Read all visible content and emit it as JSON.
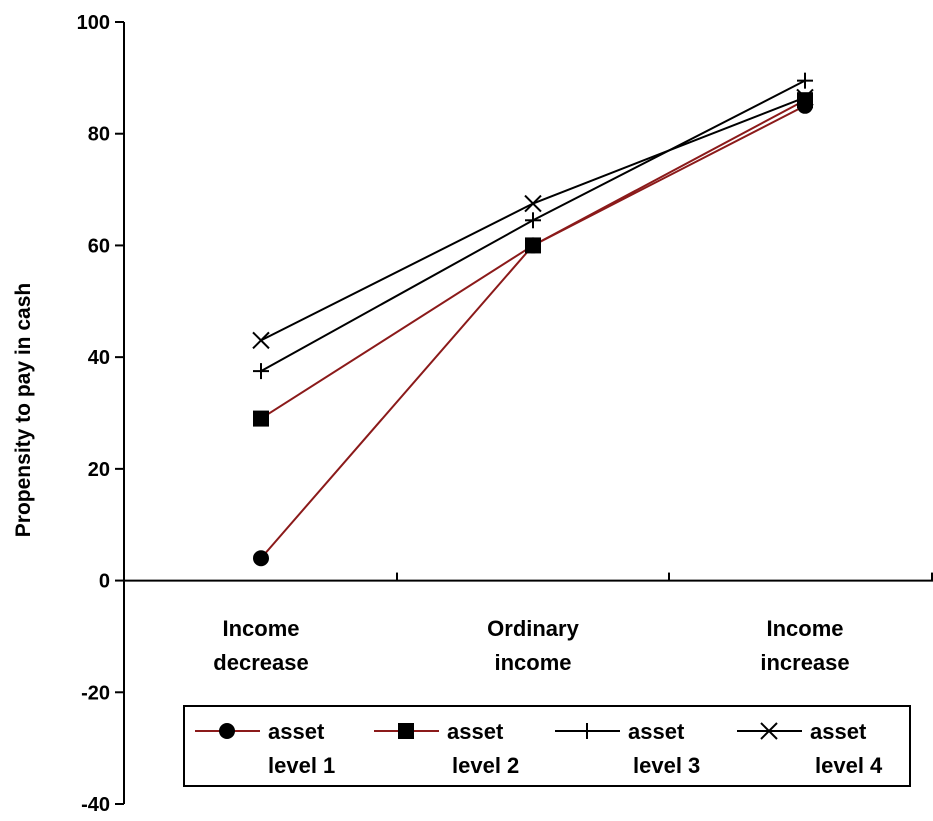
{
  "chart_data": {
    "type": "line",
    "ylabel": "Propensity to pay in cash",
    "ylim": [
      -40,
      100
    ],
    "yticks": [
      -40,
      -20,
      0,
      20,
      40,
      60,
      80,
      100
    ],
    "grid": false,
    "categories": [
      [
        "Income",
        "decrease"
      ],
      [
        "Ordinary",
        "income"
      ],
      [
        "Income",
        "increase"
      ]
    ],
    "series": [
      {
        "name": [
          "asset",
          "level 1"
        ],
        "color": "#8B1A1A",
        "marker": "circle",
        "values": [
          4,
          60,
          85
        ]
      },
      {
        "name": [
          "asset",
          "level 2"
        ],
        "color": "#8B1A1A",
        "marker": "square",
        "values": [
          29,
          60,
          86
        ]
      },
      {
        "name": [
          "asset",
          "level 3"
        ],
        "color": "#000000",
        "marker": "plus",
        "values": [
          37.5,
          64.5,
          89.5
        ]
      },
      {
        "name": [
          "asset",
          "level 4"
        ],
        "color": "#000000",
        "marker": "cross",
        "values": [
          43,
          67.5,
          86.5
        ]
      }
    ],
    "legend_position": "bottom-right"
  }
}
